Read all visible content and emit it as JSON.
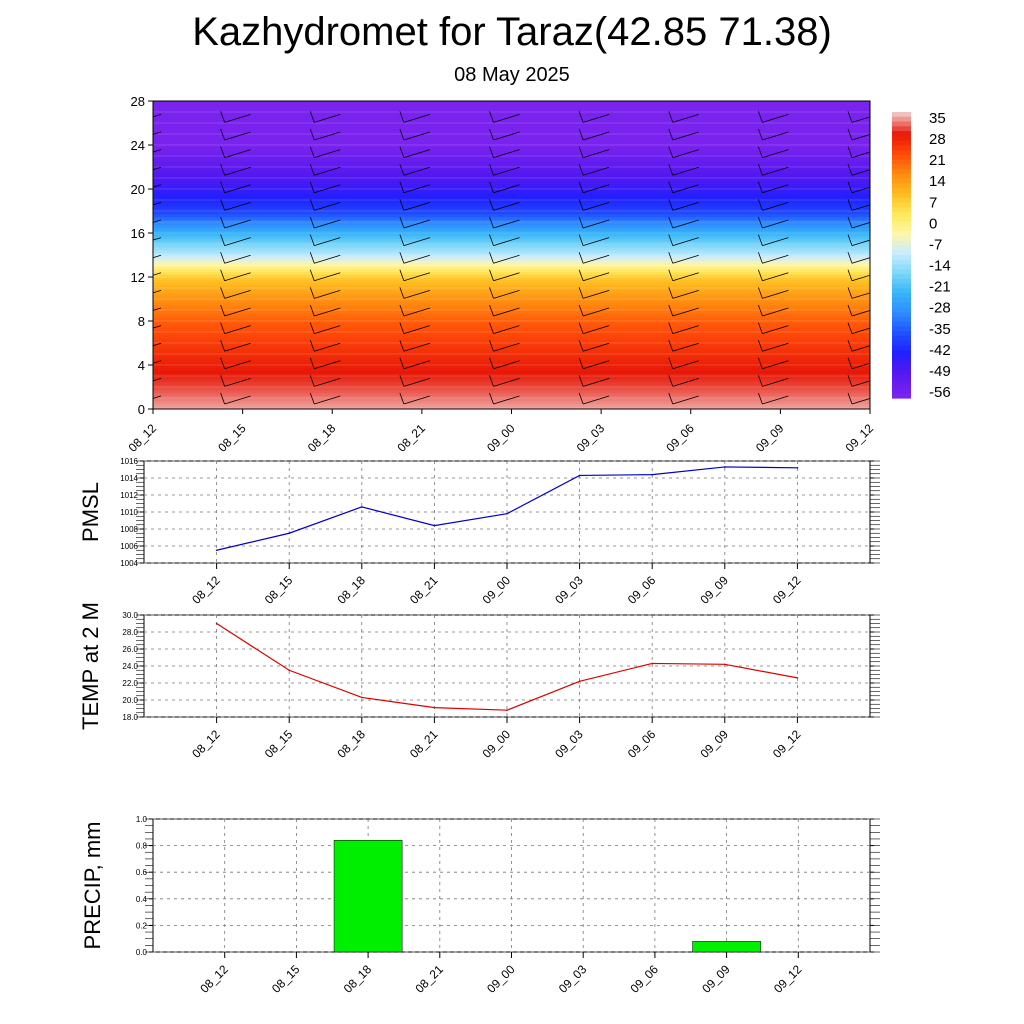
{
  "header": {
    "title": "Kazhydromet for Taraz(42.85 71.38)",
    "subtitle": "08 May 2025"
  },
  "colors": {
    "pmsl_line": "#0000cc",
    "temp_line": "#dd0000",
    "precip_bar": "#00ee00"
  },
  "chart_data": [
    {
      "type": "heatmap",
      "title": "",
      "x": [
        "08_12",
        "08_15",
        "08_18",
        "08_21",
        "09_00",
        "09_03",
        "09_06",
        "09_09",
        "09_12"
      ],
      "ylim": [
        0,
        28
      ],
      "yticks": [
        0,
        4,
        8,
        12,
        16,
        20,
        24,
        28
      ],
      "colorbar": {
        "labels": [
          "35",
          "28",
          "21",
          "14",
          "7",
          "0",
          "-7",
          "-14",
          "-21",
          "-28",
          "-35",
          "-42",
          "-49",
          "-56"
        ]
      },
      "profile_levels": [
        0,
        2,
        4,
        6,
        8,
        10,
        12,
        13,
        14,
        16,
        18,
        20,
        22,
        24,
        28
      ],
      "profile_temps": [
        34,
        30,
        27,
        23,
        19,
        13,
        5,
        -5,
        -15,
        -28,
        -44,
        -52,
        -58,
        -64,
        -64
      ],
      "wind_barbs": "present"
    },
    {
      "type": "line",
      "ylabel": "PMSL",
      "ylim": [
        1004,
        1016
      ],
      "yticks": [
        "1004",
        "1006",
        "1008",
        "1010",
        "1012",
        "1014",
        "1016"
      ],
      "categories": [
        "08_12",
        "08_15",
        "08_18",
        "08_21",
        "09_00",
        "09_03",
        "09_06",
        "09_09",
        "09_12"
      ],
      "series": [
        {
          "values": [
            1005.5,
            1007.5,
            1010.6,
            1008.4,
            1009.8,
            1014.3,
            1014.4,
            1015.3,
            1015.2
          ]
        }
      ]
    },
    {
      "type": "line",
      "ylabel": "TEMP at 2 M",
      "ylim": [
        18,
        30
      ],
      "yticks": [
        "18.0",
        "20.0",
        "22.0",
        "24.0",
        "26.0",
        "28.0",
        "30.0"
      ],
      "categories": [
        "08_12",
        "08_15",
        "08_18",
        "08_21",
        "09_00",
        "09_03",
        "09_06",
        "09_09",
        "09_12"
      ],
      "series": [
        {
          "values": [
            29.0,
            23.5,
            20.3,
            19.1,
            18.8,
            22.2,
            24.3,
            24.2,
            22.6
          ]
        }
      ]
    },
    {
      "type": "bar",
      "ylabel": "PRECIP, mm",
      "ylim": [
        0,
        1
      ],
      "yticks": [
        "0.0",
        "0.2",
        "0.4",
        "0.6",
        "0.8",
        "1.0"
      ],
      "categories": [
        "08_12",
        "08_15",
        "08_18",
        "08_21",
        "09_00",
        "09_03",
        "09_06",
        "09_09",
        "09_12"
      ],
      "values": [
        0,
        0,
        0.84,
        0,
        0,
        0,
        0,
        0.08,
        0
      ]
    }
  ]
}
